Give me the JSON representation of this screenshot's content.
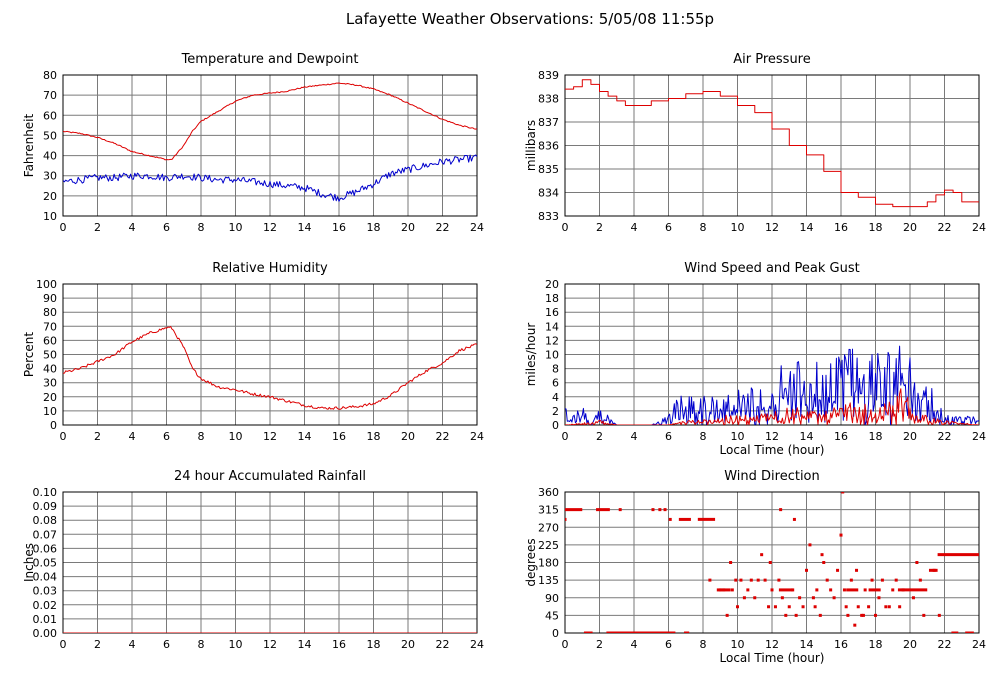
{
  "page": {
    "title": "Lafayette Weather Observations: 5/05/08 11:55p"
  },
  "colors": {
    "red": "#dd0000",
    "blue": "#0000cc",
    "grid": "#7a7a7a",
    "frame": "#000000"
  },
  "chart_data": [
    {
      "id": "temperature",
      "type": "line",
      "title": "Temperature and Dewpoint",
      "xlabel": "",
      "ylabel": "Fahrenheit",
      "xlim": [
        0,
        24
      ],
      "ylim": [
        10,
        80
      ],
      "xticks": [
        "0",
        "2",
        "4",
        "6",
        "8",
        "10",
        "12",
        "14",
        "16",
        "18",
        "20",
        "22",
        "24"
      ],
      "yticks": [
        "10",
        "20",
        "30",
        "40",
        "50",
        "60",
        "70",
        "80"
      ],
      "grid": true,
      "series": [
        {
          "color": "#dd0000",
          "noise": 0.3,
          "x": [
            0,
            1,
            2,
            3,
            4,
            5,
            6,
            6.3,
            7,
            7.5,
            8,
            9,
            10,
            11,
            12,
            13,
            14,
            15,
            16,
            17,
            18,
            19,
            20,
            21,
            22,
            23,
            24
          ],
          "y": [
            52,
            51,
            49,
            46,
            42,
            40,
            38,
            38,
            45,
            52,
            57,
            62,
            67,
            70,
            71,
            72,
            74,
            75,
            76,
            75,
            73,
            70,
            66,
            62,
            58,
            55,
            53
          ]
        },
        {
          "color": "#0000cc",
          "noise": 1.8,
          "x": [
            0,
            1,
            2,
            3,
            4,
            5,
            6,
            7,
            8,
            9,
            10,
            11,
            12,
            13,
            14,
            15,
            16,
            17,
            18,
            19,
            20,
            21,
            22,
            23,
            24
          ],
          "y": [
            27,
            28,
            29,
            29,
            30,
            30,
            29,
            30,
            29,
            28,
            28,
            27,
            26,
            25,
            24,
            21,
            19,
            22,
            26,
            31,
            33,
            35,
            37,
            38,
            39
          ]
        }
      ]
    },
    {
      "id": "pressure",
      "type": "line",
      "title": "Air Pressure",
      "xlabel": "",
      "ylabel": "millibars",
      "xlim": [
        0,
        24
      ],
      "ylim": [
        833,
        839
      ],
      "xticks": [
        "0",
        "2",
        "4",
        "6",
        "8",
        "10",
        "12",
        "14",
        "16",
        "18",
        "20",
        "22",
        "24"
      ],
      "yticks": [
        "833",
        "834",
        "835",
        "836",
        "837",
        "838",
        "839"
      ],
      "grid": true,
      "series": [
        {
          "color": "#dd0000",
          "step": true,
          "x": [
            0,
            0.5,
            1,
            1.5,
            2,
            2.5,
            3,
            3.5,
            4,
            5,
            6,
            7,
            8,
            9,
            10,
            11,
            12,
            13,
            14,
            15,
            16,
            17,
            18,
            19,
            20,
            20.5,
            21,
            21.5,
            22,
            22.5,
            23,
            24
          ],
          "y": [
            838.4,
            838.5,
            838.8,
            838.6,
            838.3,
            838.1,
            837.9,
            837.7,
            837.7,
            837.9,
            838.0,
            838.2,
            838.3,
            838.1,
            837.7,
            837.4,
            836.7,
            836.0,
            835.6,
            834.9,
            834.0,
            833.8,
            833.5,
            833.4,
            833.4,
            833.4,
            833.6,
            833.9,
            834.1,
            834.0,
            833.6,
            833.6
          ]
        }
      ]
    },
    {
      "id": "humidity",
      "type": "line",
      "title": "Relative Humidity",
      "xlabel": "",
      "ylabel": "Percent",
      "xlim": [
        0,
        24
      ],
      "ylim": [
        0,
        100
      ],
      "xticks": [
        "0",
        "2",
        "4",
        "6",
        "8",
        "10",
        "12",
        "14",
        "16",
        "18",
        "20",
        "22",
        "24"
      ],
      "yticks": [
        "0",
        "10",
        "20",
        "30",
        "40",
        "50",
        "60",
        "70",
        "80",
        "90",
        "100"
      ],
      "grid": true,
      "series": [
        {
          "color": "#dd0000",
          "noise": 1.0,
          "x": [
            0,
            1,
            2,
            3,
            4,
            5,
            6,
            6.3,
            7,
            7.5,
            8,
            9,
            10,
            11,
            12,
            13,
            14,
            15,
            16,
            17,
            18,
            19,
            20,
            21,
            22,
            23,
            24
          ],
          "y": [
            37,
            40,
            45,
            50,
            59,
            65,
            69,
            69,
            55,
            40,
            33,
            27,
            25,
            22,
            20,
            17,
            14,
            12,
            12,
            13,
            15,
            21,
            30,
            38,
            44,
            53,
            57
          ]
        }
      ]
    },
    {
      "id": "wind",
      "type": "line",
      "title": "Wind Speed and Peak Gust",
      "xlabel": "Local Time (hour)",
      "ylabel": "miles/hour",
      "xlim": [
        0,
        24
      ],
      "ylim": [
        0,
        20
      ],
      "xticks": [
        "0",
        "2",
        "4",
        "6",
        "8",
        "10",
        "12",
        "14",
        "16",
        "18",
        "20",
        "22",
        "24"
      ],
      "yticks": [
        "0",
        "2",
        "4",
        "6",
        "8",
        "10",
        "12",
        "14",
        "16",
        "18",
        "20"
      ],
      "grid": true,
      "series": [
        {
          "color": "#0000cc",
          "spiky": true,
          "x": [
            0,
            0.5,
            1,
            1.5,
            2,
            3,
            4,
            5,
            6,
            6.5,
            7,
            8,
            9,
            10,
            11,
            12,
            12.5,
            13,
            14,
            15,
            16,
            16.5,
            17,
            18,
            19,
            19.5,
            19.8,
            20,
            21,
            21.5,
            22,
            23,
            24
          ],
          "y": [
            2,
            1,
            2,
            0,
            2,
            0,
            0,
            0,
            1,
            3,
            3,
            3,
            3,
            4,
            4,
            4,
            8,
            6,
            7,
            6,
            8,
            9,
            8,
            7,
            9,
            12,
            16,
            7,
            6,
            3,
            1,
            1,
            1
          ]
        },
        {
          "color": "#dd0000",
          "spiky": true,
          "x": [
            0,
            2,
            3,
            4,
            5,
            6,
            7,
            8,
            9,
            10,
            11,
            12,
            13,
            14,
            15,
            16,
            17,
            18,
            19,
            19.8,
            20,
            21,
            22,
            24
          ],
          "y": [
            0,
            0.5,
            0,
            0,
            0,
            0,
            0.5,
            0.5,
            1,
            1,
            1,
            1.5,
            2,
            1.5,
            2,
            2,
            2.5,
            2,
            2.5,
            5,
            2,
            1,
            0.5,
            0
          ]
        }
      ]
    },
    {
      "id": "rainfall",
      "type": "line",
      "title": "24 hour Accumulated Rainfall",
      "xlabel": "",
      "ylabel": "Inches",
      "xlim": [
        0,
        24
      ],
      "ylim": [
        0,
        0.1
      ],
      "xticks": [
        "0",
        "2",
        "4",
        "6",
        "8",
        "10",
        "12",
        "14",
        "16",
        "18",
        "20",
        "22",
        "24"
      ],
      "yticks": [
        "0.00",
        "0.01",
        "0.02",
        "0.03",
        "0.04",
        "0.05",
        "0.06",
        "0.07",
        "0.08",
        "0.09",
        "0.10"
      ],
      "grid": true,
      "series": [
        {
          "color": "#dd0000",
          "x": [
            0,
            24
          ],
          "y": [
            0,
            0
          ]
        }
      ]
    },
    {
      "id": "direction",
      "type": "scatter",
      "title": "Wind Direction",
      "xlabel": "Local Time (hour)",
      "ylabel": "degrees",
      "xlim": [
        0,
        24
      ],
      "ylim": [
        0,
        360
      ],
      "xticks": [
        "0",
        "2",
        "4",
        "6",
        "8",
        "10",
        "12",
        "14",
        "16",
        "18",
        "20",
        "22",
        "24"
      ],
      "yticks": [
        "0",
        "45",
        "90",
        "135",
        "180",
        "225",
        "270",
        "315",
        "360"
      ],
      "grid": true,
      "runs": [
        {
          "color": "#dd0000",
          "y": 315,
          "x0": 0.0,
          "x1": 1.0
        },
        {
          "color": "#dd0000",
          "y": 0,
          "x0": 1.1,
          "x1": 1.6
        },
        {
          "color": "#dd0000",
          "y": 315,
          "x0": 1.8,
          "x1": 2.6
        },
        {
          "color": "#dd0000",
          "y": 0,
          "x0": 2.4,
          "x1": 6.4
        },
        {
          "color": "#dd0000",
          "y": 0,
          "x0": 6.9,
          "x1": 7.2
        },
        {
          "color": "#dd0000",
          "y": 290,
          "x0": 6.6,
          "x1": 7.3
        },
        {
          "color": "#dd0000",
          "y": 290,
          "x0": 7.7,
          "x1": 8.7
        },
        {
          "color": "#dd0000",
          "y": 110,
          "x0": 8.8,
          "x1": 9.6
        },
        {
          "color": "#dd0000",
          "y": 110,
          "x0": 12.4,
          "x1": 13.2
        },
        {
          "color": "#dd0000",
          "y": 110,
          "x0": 16.3,
          "x1": 17.0
        },
        {
          "color": "#dd0000",
          "y": 110,
          "x0": 17.6,
          "x1": 18.3
        },
        {
          "color": "#dd0000",
          "y": 110,
          "x0": 19.3,
          "x1": 21.0
        },
        {
          "color": "#dd0000",
          "y": 160,
          "x0": 21.1,
          "x1": 21.6
        },
        {
          "color": "#dd0000",
          "y": 200,
          "x0": 21.6,
          "x1": 24.0
        },
        {
          "color": "#dd0000",
          "y": 0,
          "x0": 22.4,
          "x1": 22.8
        },
        {
          "color": "#dd0000",
          "y": 0,
          "x0": 23.2,
          "x1": 23.7
        }
      ],
      "series": [
        {
          "color": "#dd0000",
          "x": [
            0.0,
            3.2,
            5.1,
            5.5,
            5.8,
            6.1,
            9.4,
            9.6,
            9.7,
            9.9,
            10.0,
            10.2,
            10.4,
            10.6,
            10.8,
            11.0,
            11.2,
            11.4,
            11.6,
            11.8,
            12.0,
            12.2,
            12.4,
            12.5,
            12.6,
            12.8,
            13.0,
            13.2,
            13.3,
            13.4,
            13.6,
            13.8,
            14.0,
            14.2,
            14.4,
            14.5,
            14.6,
            14.8,
            15.0,
            15.2,
            15.4,
            15.6,
            15.8,
            16.0,
            16.1,
            16.2,
            16.4,
            16.6,
            16.8,
            17.0,
            17.2,
            17.4,
            17.6,
            17.8,
            18.0,
            18.2,
            18.4,
            18.6,
            18.8,
            19.0,
            19.2,
            19.4,
            19.6,
            20.2,
            20.4,
            20.6,
            20.8,
            8.4,
            21.4,
            21.7,
            9.0,
            9.2,
            11.9,
            14.9,
            16.3,
            16.9,
            17.3
          ],
          "y": [
            290,
            315,
            315,
            315,
            315,
            290,
            45,
            180,
            110,
            135,
            67,
            135,
            90,
            110,
            135,
            90,
            135,
            200,
            135,
            67,
            110,
            67,
            135,
            315,
            90,
            45,
            67,
            110,
            290,
            45,
            90,
            67,
            160,
            225,
            90,
            67,
            110,
            45,
            180,
            135,
            110,
            90,
            160,
            250,
            360,
            110,
            45,
            135,
            20,
            67,
            45,
            110,
            67,
            135,
            45,
            90,
            135,
            67,
            67,
            110,
            135,
            67,
            110,
            90,
            180,
            135,
            45,
            135,
            160,
            45,
            110,
            110,
            180,
            200,
            67,
            160,
            45
          ]
        }
      ]
    }
  ]
}
